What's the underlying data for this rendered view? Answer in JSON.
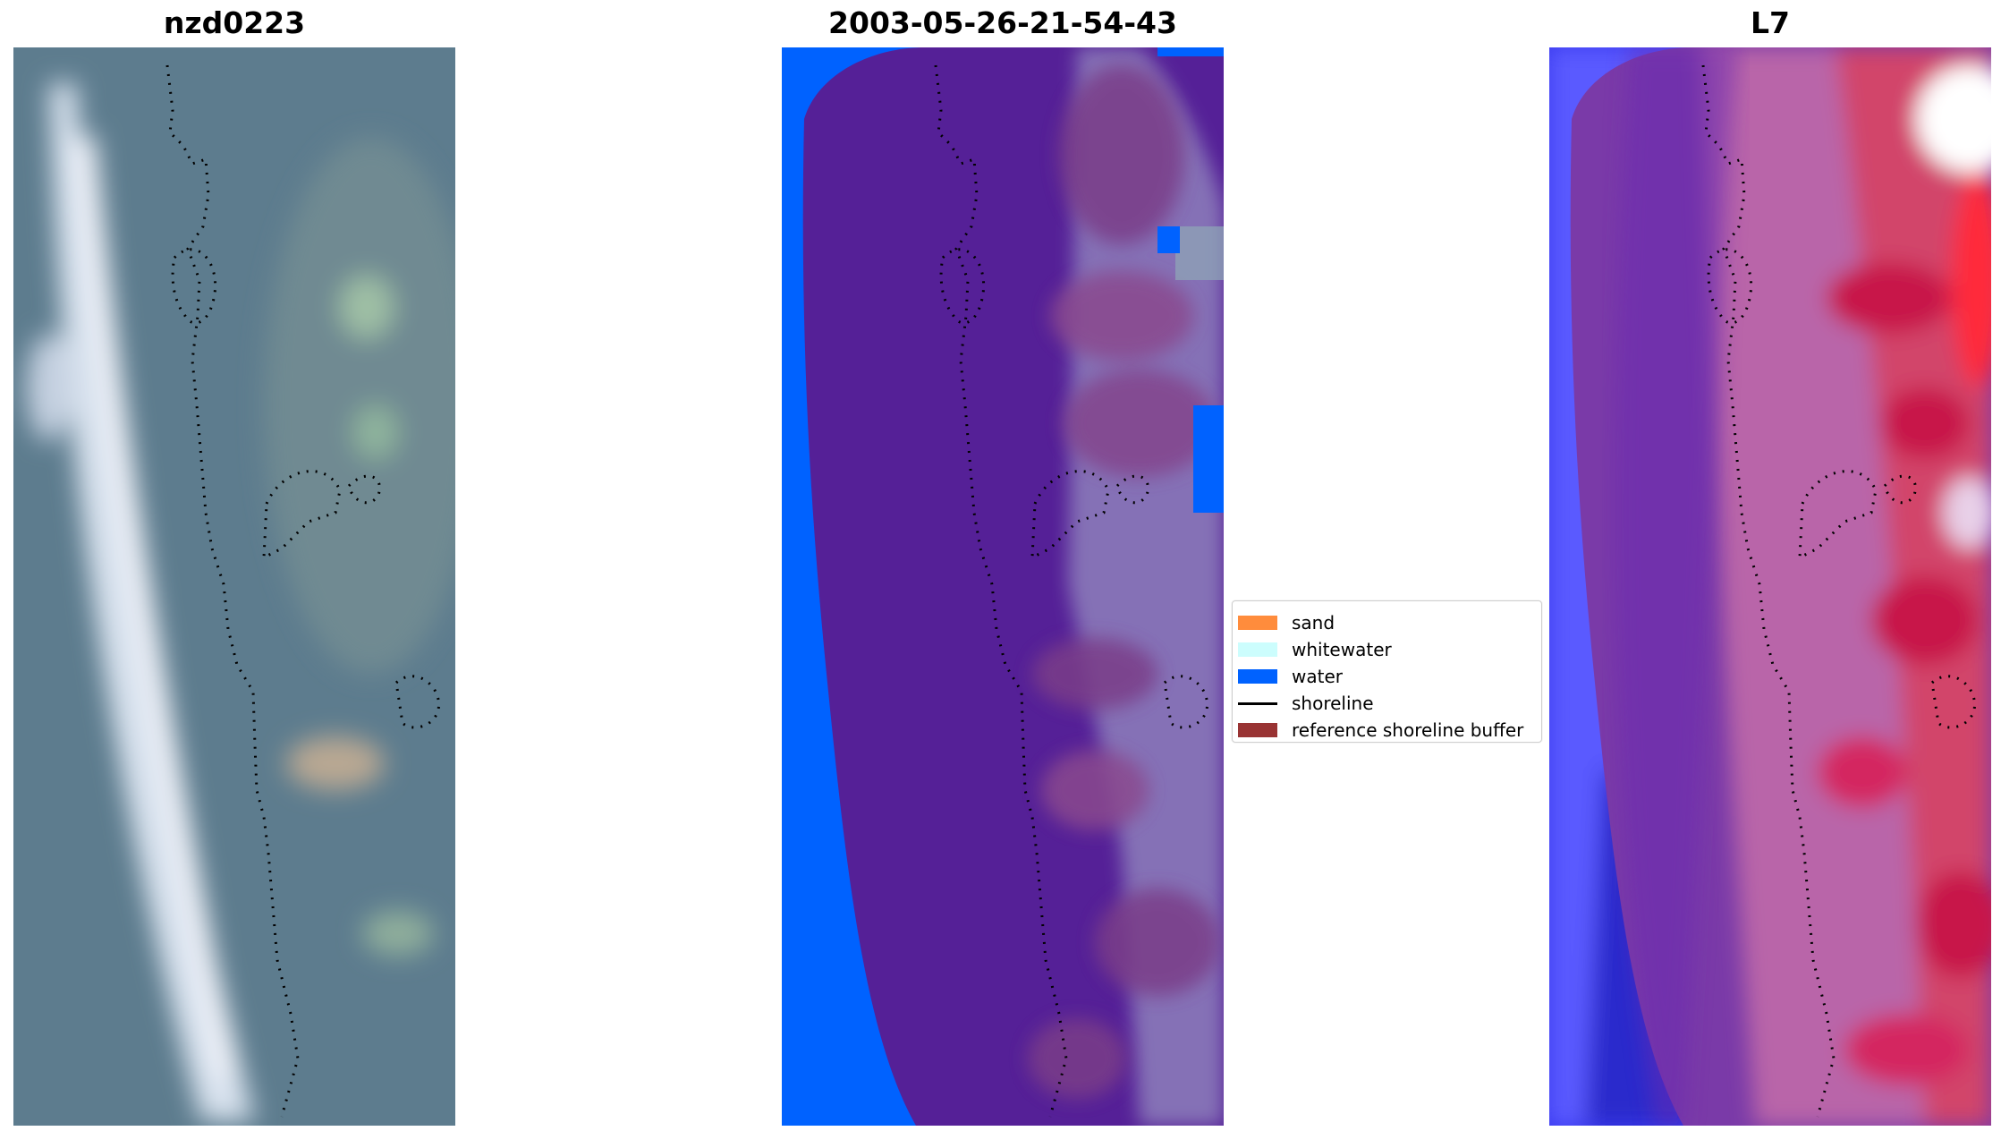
{
  "panels": [
    {
      "title": "nzd0223"
    },
    {
      "title": "2003-05-26-21-54-43"
    },
    {
      "title": "L7"
    }
  ],
  "legend": {
    "items": [
      {
        "label": "sand",
        "color": "#ff8c3c",
        "kind": "patch"
      },
      {
        "label": "whitewater",
        "color": "#ccfdfd",
        "kind": "patch"
      },
      {
        "label": "water",
        "color": "#0062ff",
        "kind": "patch"
      },
      {
        "label": "shoreline",
        "color": "#000000",
        "kind": "line"
      },
      {
        "label": "reference shoreline buffer",
        "color": "#993333",
        "kind": "patch"
      }
    ]
  }
}
